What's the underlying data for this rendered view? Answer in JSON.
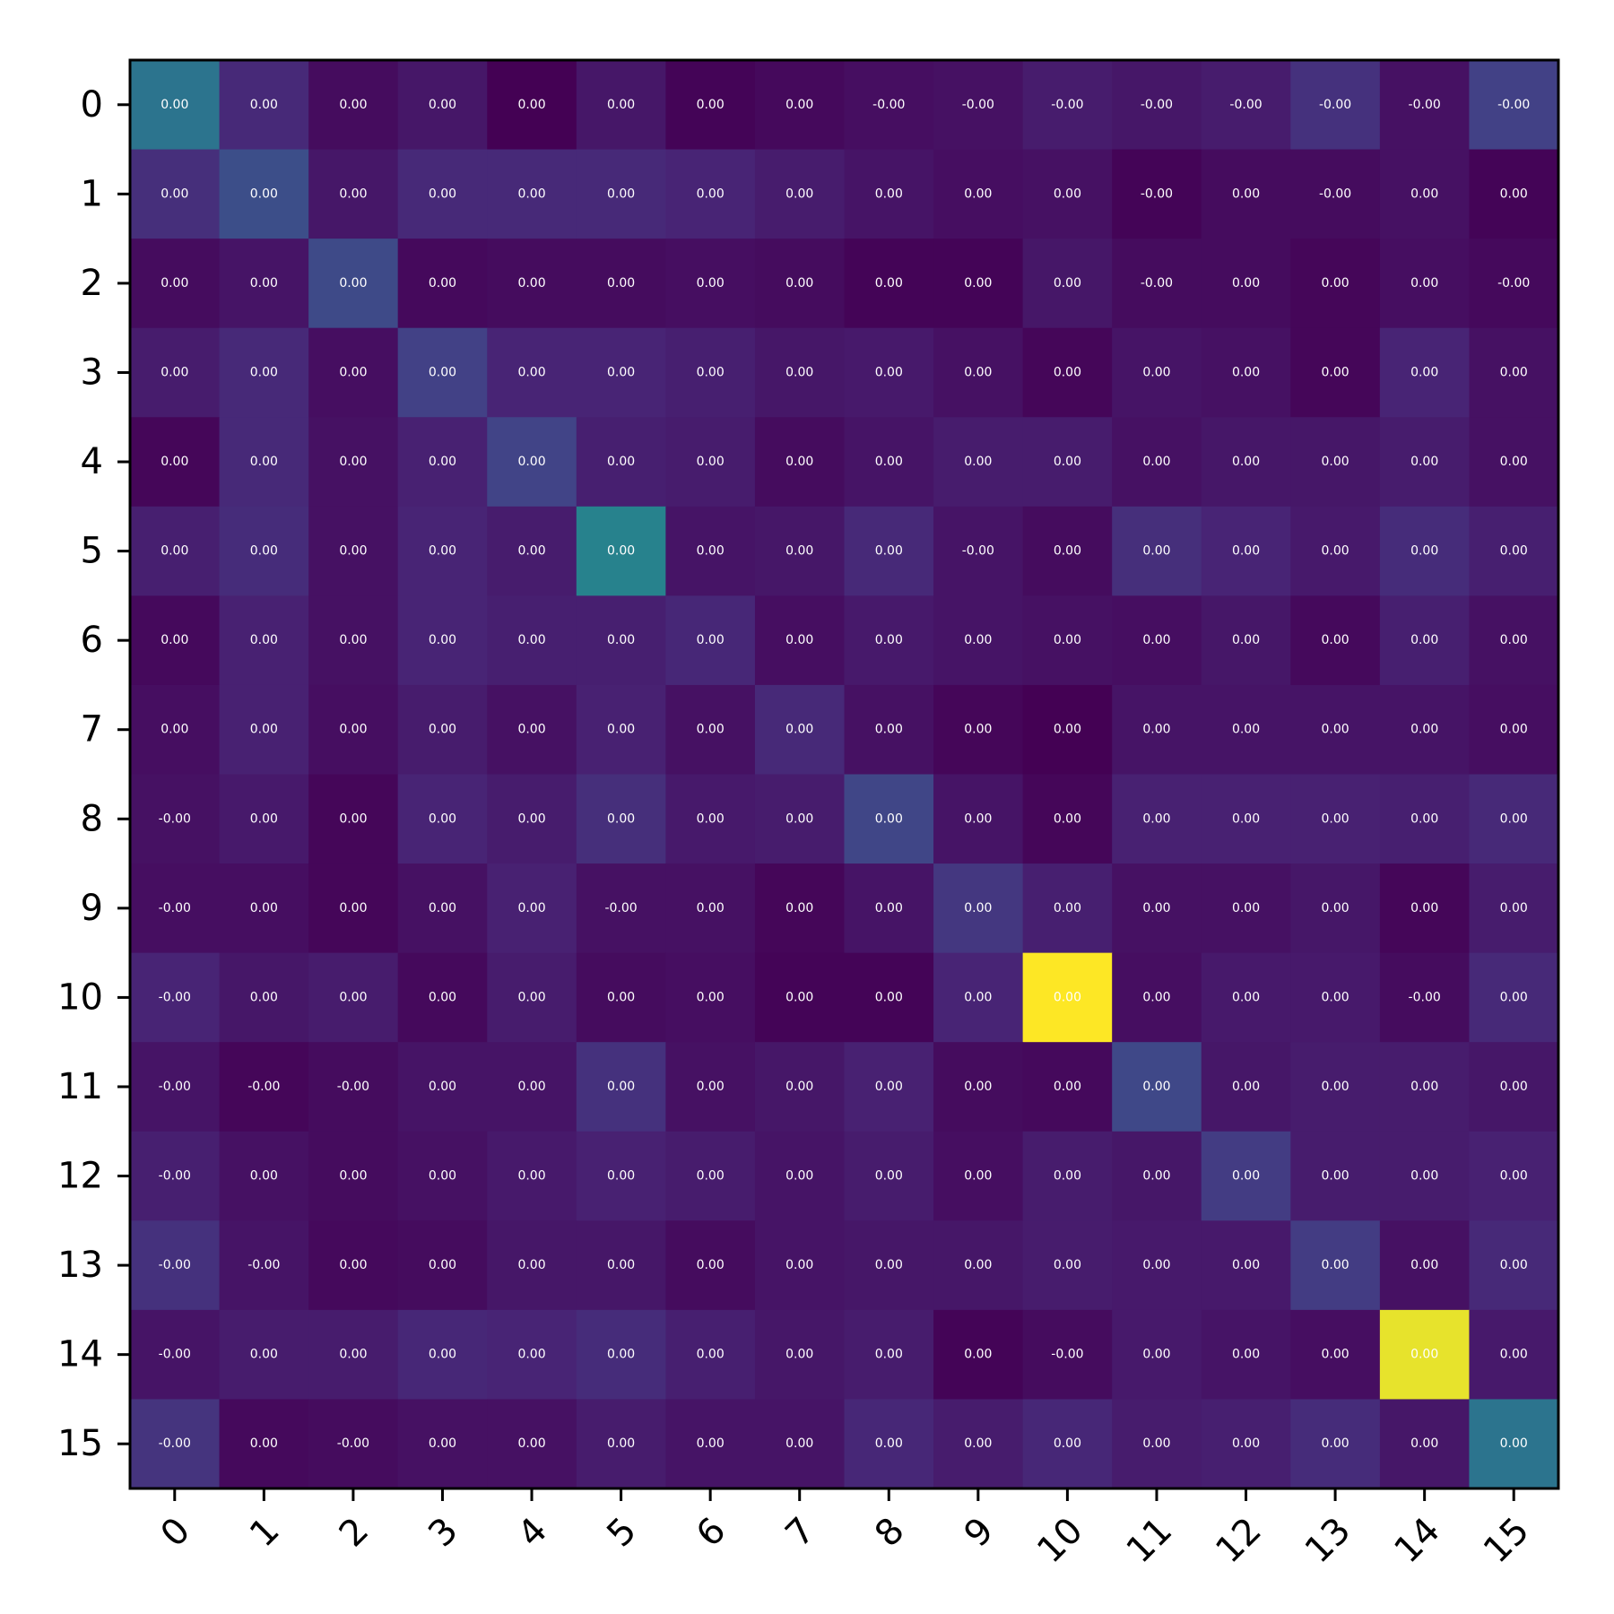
{
  "chart_data": {
    "type": "heatmap",
    "title": "",
    "xlabel": "",
    "ylabel": "",
    "colormap": "viridis",
    "colors": {
      "frame": "#000000",
      "cell_text": "#ffffff",
      "background": "#ffffff"
    },
    "x_tick_labels": [
      "0",
      "1",
      "2",
      "3",
      "4",
      "5",
      "6",
      "7",
      "8",
      "9",
      "10",
      "11",
      "12",
      "13",
      "14",
      "15"
    ],
    "y_tick_labels": [
      "0",
      "1",
      "2",
      "3",
      "4",
      "5",
      "6",
      "7",
      "8",
      "9",
      "10",
      "11",
      "12",
      "13",
      "14",
      "15"
    ],
    "x_tick_rotation_deg": 45,
    "grid": false,
    "colorbar": false,
    "intensity": [
      [
        0.48,
        0.15,
        0.04,
        0.08,
        0.0,
        0.08,
        0.01,
        0.03,
        0.05,
        0.06,
        0.1,
        0.08,
        0.1,
        0.18,
        0.06,
        0.24
      ],
      [
        0.17,
        0.3,
        0.08,
        0.15,
        0.15,
        0.15,
        0.13,
        0.1,
        0.07,
        0.05,
        0.06,
        0.01,
        0.04,
        0.04,
        0.06,
        0.01
      ],
      [
        0.04,
        0.07,
        0.28,
        0.03,
        0.04,
        0.04,
        0.05,
        0.04,
        0.01,
        0.01,
        0.08,
        0.04,
        0.04,
        0.02,
        0.05,
        0.03
      ],
      [
        0.1,
        0.15,
        0.05,
        0.24,
        0.13,
        0.13,
        0.11,
        0.08,
        0.09,
        0.06,
        0.02,
        0.07,
        0.06,
        0.02,
        0.13,
        0.06
      ],
      [
        0.02,
        0.15,
        0.06,
        0.12,
        0.25,
        0.11,
        0.1,
        0.04,
        0.07,
        0.1,
        0.1,
        0.06,
        0.08,
        0.08,
        0.1,
        0.06
      ],
      [
        0.11,
        0.16,
        0.06,
        0.13,
        0.1,
        0.55,
        0.07,
        0.08,
        0.15,
        0.07,
        0.04,
        0.17,
        0.13,
        0.09,
        0.16,
        0.11
      ],
      [
        0.03,
        0.12,
        0.06,
        0.13,
        0.11,
        0.11,
        0.14,
        0.05,
        0.09,
        0.07,
        0.06,
        0.05,
        0.08,
        0.03,
        0.11,
        0.06
      ],
      [
        0.05,
        0.12,
        0.05,
        0.1,
        0.06,
        0.12,
        0.06,
        0.15,
        0.06,
        0.02,
        0.0,
        0.07,
        0.07,
        0.07,
        0.07,
        0.05
      ],
      [
        0.06,
        0.09,
        0.02,
        0.13,
        0.1,
        0.17,
        0.09,
        0.1,
        0.26,
        0.07,
        0.02,
        0.12,
        0.12,
        0.12,
        0.11,
        0.15
      ],
      [
        0.05,
        0.05,
        0.02,
        0.06,
        0.12,
        0.06,
        0.06,
        0.02,
        0.07,
        0.2,
        0.11,
        0.06,
        0.06,
        0.08,
        0.02,
        0.1
      ],
      [
        0.13,
        0.08,
        0.1,
        0.03,
        0.1,
        0.04,
        0.05,
        0.01,
        0.01,
        0.13,
        1.0,
        0.05,
        0.09,
        0.09,
        0.04,
        0.15
      ],
      [
        0.07,
        0.02,
        0.04,
        0.07,
        0.07,
        0.18,
        0.06,
        0.08,
        0.12,
        0.04,
        0.03,
        0.27,
        0.08,
        0.1,
        0.1,
        0.08
      ],
      [
        0.11,
        0.06,
        0.04,
        0.06,
        0.09,
        0.12,
        0.1,
        0.07,
        0.1,
        0.05,
        0.1,
        0.08,
        0.22,
        0.1,
        0.1,
        0.12
      ],
      [
        0.18,
        0.07,
        0.03,
        0.04,
        0.08,
        0.08,
        0.04,
        0.07,
        0.08,
        0.08,
        0.1,
        0.09,
        0.09,
        0.22,
        0.06,
        0.15
      ],
      [
        0.07,
        0.1,
        0.1,
        0.14,
        0.13,
        0.16,
        0.11,
        0.08,
        0.1,
        0.01,
        0.04,
        0.09,
        0.07,
        0.05,
        0.98,
        0.09
      ],
      [
        0.19,
        0.03,
        0.04,
        0.06,
        0.06,
        0.1,
        0.07,
        0.07,
        0.14,
        0.1,
        0.14,
        0.1,
        0.11,
        0.16,
        0.08,
        0.48
      ]
    ],
    "cell_labels": [
      [
        "0.00",
        "0.00",
        "0.00",
        "0.00",
        "0.00",
        "0.00",
        "0.00",
        "0.00",
        "-0.00",
        "-0.00",
        "-0.00",
        "-0.00",
        "-0.00",
        "-0.00",
        "-0.00",
        "-0.00"
      ],
      [
        "0.00",
        "0.00",
        "0.00",
        "0.00",
        "0.00",
        "0.00",
        "0.00",
        "0.00",
        "0.00",
        "0.00",
        "0.00",
        "-0.00",
        "0.00",
        "-0.00",
        "0.00",
        "0.00"
      ],
      [
        "0.00",
        "0.00",
        "0.00",
        "0.00",
        "0.00",
        "0.00",
        "0.00",
        "0.00",
        "0.00",
        "0.00",
        "0.00",
        "-0.00",
        "0.00",
        "0.00",
        "0.00",
        "-0.00"
      ],
      [
        "0.00",
        "0.00",
        "0.00",
        "0.00",
        "0.00",
        "0.00",
        "0.00",
        "0.00",
        "0.00",
        "0.00",
        "0.00",
        "0.00",
        "0.00",
        "0.00",
        "0.00",
        "0.00"
      ],
      [
        "0.00",
        "0.00",
        "0.00",
        "0.00",
        "0.00",
        "0.00",
        "0.00",
        "0.00",
        "0.00",
        "0.00",
        "0.00",
        "0.00",
        "0.00",
        "0.00",
        "0.00",
        "0.00"
      ],
      [
        "0.00",
        "0.00",
        "0.00",
        "0.00",
        "0.00",
        "0.00",
        "0.00",
        "0.00",
        "0.00",
        "-0.00",
        "0.00",
        "0.00",
        "0.00",
        "0.00",
        "0.00",
        "0.00"
      ],
      [
        "0.00",
        "0.00",
        "0.00",
        "0.00",
        "0.00",
        "0.00",
        "0.00",
        "0.00",
        "0.00",
        "0.00",
        "0.00",
        "0.00",
        "0.00",
        "0.00",
        "0.00",
        "0.00"
      ],
      [
        "0.00",
        "0.00",
        "0.00",
        "0.00",
        "0.00",
        "0.00",
        "0.00",
        "0.00",
        "0.00",
        "0.00",
        "0.00",
        "0.00",
        "0.00",
        "0.00",
        "0.00",
        "0.00"
      ],
      [
        "-0.00",
        "0.00",
        "0.00",
        "0.00",
        "0.00",
        "0.00",
        "0.00",
        "0.00",
        "0.00",
        "0.00",
        "0.00",
        "0.00",
        "0.00",
        "0.00",
        "0.00",
        "0.00"
      ],
      [
        "-0.00",
        "0.00",
        "0.00",
        "0.00",
        "0.00",
        "-0.00",
        "0.00",
        "0.00",
        "0.00",
        "0.00",
        "0.00",
        "0.00",
        "0.00",
        "0.00",
        "0.00",
        "0.00"
      ],
      [
        "-0.00",
        "0.00",
        "0.00",
        "0.00",
        "0.00",
        "0.00",
        "0.00",
        "0.00",
        "0.00",
        "0.00",
        "0.00",
        "0.00",
        "0.00",
        "0.00",
        "-0.00",
        "0.00"
      ],
      [
        "-0.00",
        "-0.00",
        "-0.00",
        "0.00",
        "0.00",
        "0.00",
        "0.00",
        "0.00",
        "0.00",
        "0.00",
        "0.00",
        "0.00",
        "0.00",
        "0.00",
        "0.00",
        "0.00"
      ],
      [
        "-0.00",
        "0.00",
        "0.00",
        "0.00",
        "0.00",
        "0.00",
        "0.00",
        "0.00",
        "0.00",
        "0.00",
        "0.00",
        "0.00",
        "0.00",
        "0.00",
        "0.00",
        "0.00"
      ],
      [
        "-0.00",
        "-0.00",
        "0.00",
        "0.00",
        "0.00",
        "0.00",
        "0.00",
        "0.00",
        "0.00",
        "0.00",
        "0.00",
        "0.00",
        "0.00",
        "0.00",
        "0.00",
        "0.00"
      ],
      [
        "-0.00",
        "0.00",
        "0.00",
        "0.00",
        "0.00",
        "0.00",
        "0.00",
        "0.00",
        "0.00",
        "0.00",
        "-0.00",
        "0.00",
        "0.00",
        "0.00",
        "0.00",
        "0.00"
      ],
      [
        "-0.00",
        "0.00",
        "-0.00",
        "0.00",
        "0.00",
        "0.00",
        "0.00",
        "0.00",
        "0.00",
        "0.00",
        "0.00",
        "0.00",
        "0.00",
        "0.00",
        "0.00",
        "0.00"
      ]
    ]
  }
}
